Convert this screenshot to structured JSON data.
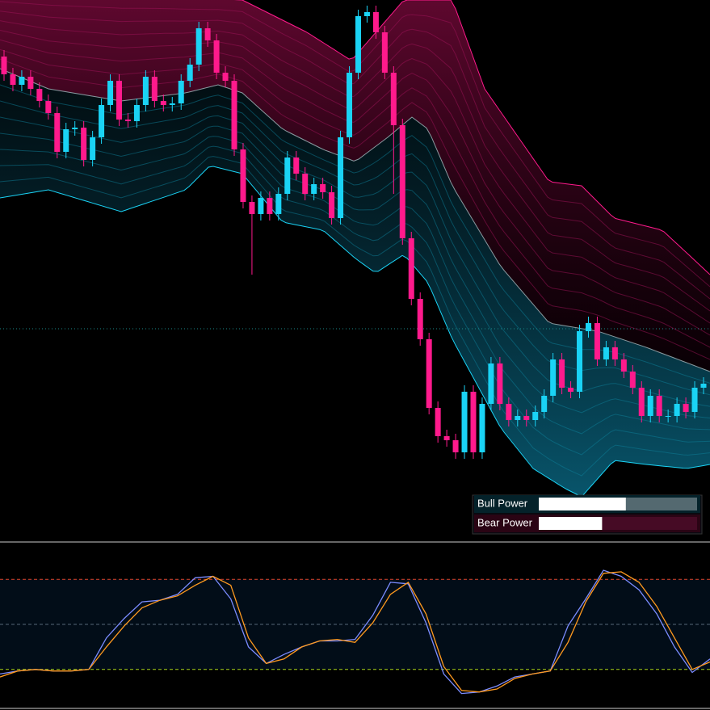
{
  "chart_data": [
    {
      "type": "candlestick",
      "open": [
        600,
        578,
        565,
        575,
        560,
        545,
        530,
        482,
        510,
        512,
        472,
        500,
        540,
        570,
        522,
        520,
        540,
        575,
        545,
        540,
        542,
        570,
        590,
        635,
        620,
        580,
        570,
        485,
        420,
        405,
        425,
        405,
        430,
        475,
        455,
        430,
        442,
        432,
        400,
        500,
        580,
        650,
        655,
        630,
        580,
        515,
        375,
        300,
        250,
        165,
        130,
        125,
        110,
        185,
        110,
        170,
        220,
        170,
        150,
        155,
        150,
        160,
        180,
        225,
        190,
        185,
        260,
        270,
        225,
        240,
        225,
        210,
        190,
        155,
        180,
        155,
        155,
        170,
        160,
        190
      ],
      "high": [
        608,
        586,
        583,
        583,
        568,
        553,
        538,
        518,
        520,
        520,
        508,
        548,
        578,
        578,
        530,
        548,
        583,
        583,
        553,
        550,
        578,
        598,
        643,
        643,
        628,
        588,
        578,
        493,
        428,
        433,
        433,
        438,
        483,
        483,
        463,
        450,
        450,
        440,
        508,
        588,
        658,
        663,
        663,
        638,
        588,
        523,
        383,
        308,
        258,
        173,
        138,
        133,
        193,
        193,
        178,
        228,
        228,
        178,
        163,
        163,
        168,
        188,
        233,
        233,
        198,
        268,
        278,
        278,
        248,
        248,
        233,
        218,
        198,
        188,
        188,
        163,
        178,
        178,
        198,
        203
      ],
      "low": [
        570,
        557,
        557,
        552,
        537,
        522,
        474,
        474,
        502,
        464,
        464,
        492,
        532,
        514,
        512,
        512,
        532,
        537,
        532,
        532,
        534,
        562,
        582,
        612,
        572,
        562,
        477,
        412,
        330,
        397,
        397,
        397,
        422,
        447,
        422,
        422,
        424,
        392,
        392,
        492,
        572,
        642,
        622,
        572,
        430,
        367,
        292,
        242,
        157,
        122,
        117,
        102,
        102,
        102,
        102,
        162,
        162,
        142,
        142,
        142,
        142,
        152,
        172,
        182,
        177,
        177,
        252,
        217,
        217,
        217,
        202,
        182,
        147,
        147,
        147,
        147,
        147,
        152,
        152,
        182
      ],
      "close": [
        578,
        565,
        575,
        560,
        545,
        530,
        482,
        510,
        512,
        472,
        500,
        540,
        570,
        522,
        520,
        540,
        575,
        545,
        540,
        542,
        570,
        590,
        635,
        620,
        580,
        570,
        485,
        420,
        405,
        425,
        405,
        430,
        475,
        455,
        430,
        442,
        432,
        400,
        500,
        580,
        650,
        655,
        630,
        580,
        515,
        375,
        300,
        250,
        165,
        130,
        125,
        110,
        185,
        110,
        170,
        220,
        170,
        150,
        155,
        150,
        160,
        180,
        225,
        190,
        185,
        260,
        270,
        225,
        240,
        225,
        210,
        190,
        155,
        180,
        155,
        155,
        170,
        160,
        190,
        195
      ],
      "up_color": "#1ad3f5",
      "down_color": "#ff1a8c",
      "ylim": [
        0,
        670
      ],
      "legend": [
        {
          "name": "Bull Power",
          "value": 55
        },
        {
          "name": "Bear Power",
          "value": 40
        }
      ],
      "legend_max": 100
    },
    {
      "type": "line",
      "ylim": [
        0,
        100
      ],
      "levels": [
        80,
        50,
        20
      ],
      "series": [
        {
          "color": "#7b8cff",
          "values": [
            17,
            19,
            20,
            19,
            19,
            20,
            41,
            54,
            65,
            66,
            70,
            81,
            82,
            67,
            35,
            24,
            30,
            35,
            39,
            39,
            40,
            56,
            78,
            77,
            51,
            17,
            4,
            5,
            9,
            15,
            17,
            19,
            49,
            67,
            86,
            82,
            73,
            57,
            35,
            18,
            27
          ]
        },
        {
          "color": "#ff9a1f",
          "values": [
            15,
            19,
            20,
            19,
            19,
            20,
            35,
            49,
            61,
            66,
            69,
            76,
            82,
            76,
            41,
            24,
            27,
            35,
            39,
            40,
            38,
            51,
            70,
            78,
            57,
            22,
            6,
            5,
            7,
            14,
            17,
            19,
            38,
            65,
            84,
            85,
            78,
            62,
            41,
            20,
            25
          ]
        }
      ]
    }
  ]
}
